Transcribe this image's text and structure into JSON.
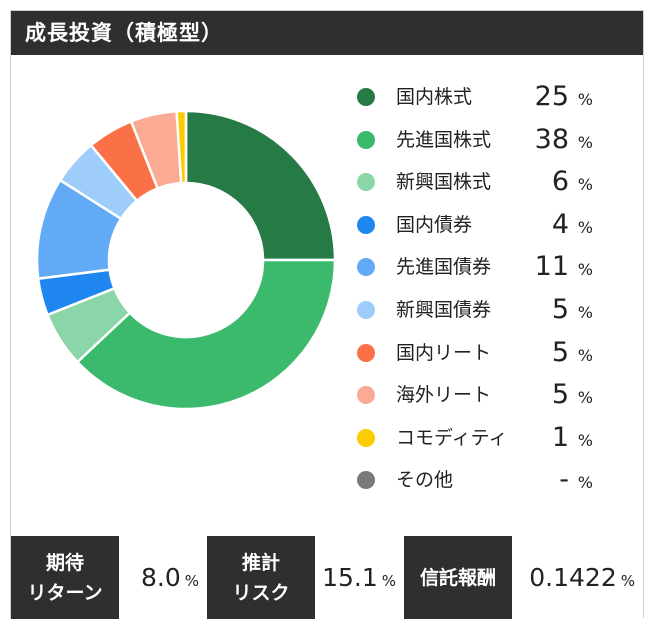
{
  "header": {
    "title": "成長投資（積極型）"
  },
  "chart_data": {
    "type": "pie",
    "donut": true,
    "unit": "%",
    "categories": [
      "国内株式",
      "先進国株式",
      "新興国株式",
      "国内債券",
      "先進国債券",
      "新興国債券",
      "国内リート",
      "海外リート",
      "コモディティ",
      "その他"
    ],
    "values": [
      25,
      38,
      6,
      4,
      11,
      5,
      5,
      5,
      1,
      null
    ],
    "value_labels": [
      "25",
      "38",
      "6",
      "4",
      "11",
      "5",
      "5",
      "5",
      "1",
      "-"
    ],
    "colors": [
      "#257a46",
      "#3bba6e",
      "#8ad6a8",
      "#1f86ef",
      "#63aaf6",
      "#9ecdfb",
      "#fb7147",
      "#fbab94",
      "#fbcc00",
      "#7a7a7a"
    ]
  },
  "footer": {
    "expected_return": {
      "label_line1": "期待",
      "label_line2": "リターン",
      "value": "8.0",
      "unit": "%"
    },
    "estimated_risk": {
      "label_line1": "推計",
      "label_line2": "リスク",
      "value": "15.1",
      "unit": "%"
    },
    "trust_fee": {
      "label": "信託報酬",
      "value": "0.1422",
      "unit": "%"
    }
  }
}
